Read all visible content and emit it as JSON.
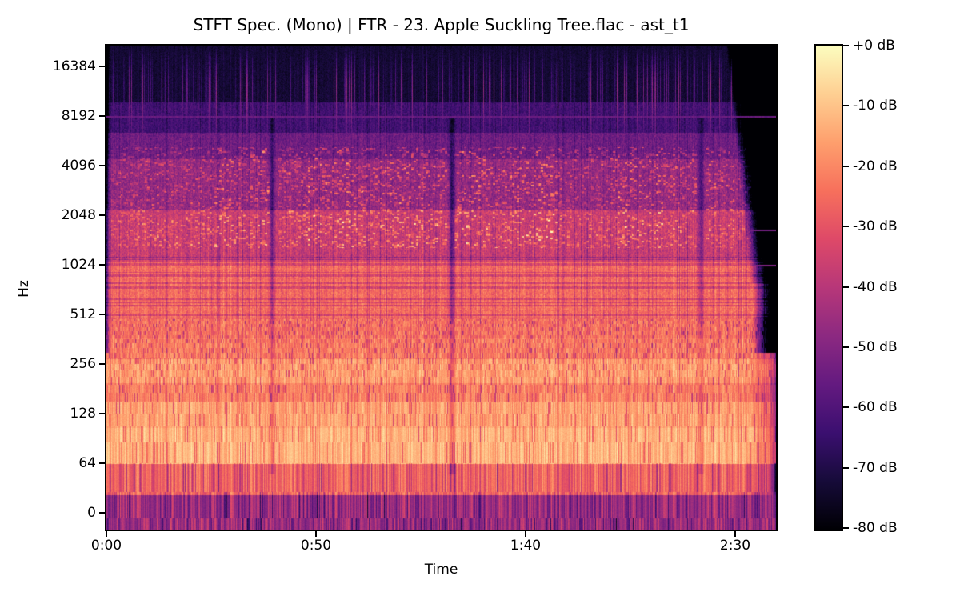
{
  "figure": {
    "background": "#ffffff",
    "text_color": "#000000"
  },
  "chart_data": {
    "type": "heatmap",
    "subtype": "stft-spectrogram",
    "title": "STFT Spec. (Mono) | FTR - 23. Apple Suckling Tree.flac - ast_t1",
    "xlabel": "Time",
    "ylabel": "Hz",
    "x_tick_labels": [
      "0:00",
      "0:50",
      "1:40",
      "2:30"
    ],
    "x_tick_seconds": [
      0,
      50,
      100,
      150
    ],
    "duration_seconds": 160,
    "y_tick_labels": [
      "16384",
      "8192",
      "4096",
      "2048",
      "1024",
      "512",
      "256",
      "128",
      "64",
      "0"
    ],
    "y_scale": "log2",
    "freq_top_hz": 22050,
    "grid": false,
    "colormap": "magma",
    "colormap_stops": [
      "#000004",
      "#160b39",
      "#3b0f70",
      "#641a80",
      "#8c2981",
      "#b73779",
      "#de4968",
      "#f7705c",
      "#fe9f6d",
      "#fecf92",
      "#fcfdbf"
    ],
    "colorbar_tick_labels": [
      "+0 dB",
      "-10 dB",
      "-20 dB",
      "-30 dB",
      "-40 dB",
      "-50 dB",
      "-60 dB",
      "-70 dB",
      "-80 dB"
    ],
    "db_min": -80,
    "db_max": 0,
    "band_profile": [
      {
        "f_lo": 0,
        "f_hi": 41,
        "db": -45,
        "spread": 13,
        "mode": "col"
      },
      {
        "f_lo": 41,
        "f_hi": 64,
        "db": -26,
        "spread": 10,
        "mode": "col"
      },
      {
        "f_lo": 64,
        "f_hi": 105,
        "db": -12,
        "spread": 6,
        "mode": "col"
      },
      {
        "f_lo": 105,
        "f_hi": 152,
        "db": -15,
        "spread": 6,
        "mode": "col"
      },
      {
        "f_lo": 152,
        "f_hi": 196,
        "db": -21,
        "spread": 7,
        "mode": "col"
      },
      {
        "f_lo": 196,
        "f_hi": 275,
        "db": -16,
        "spread": 7,
        "mode": "col"
      },
      {
        "f_lo": 275,
        "f_hi": 370,
        "db": -22,
        "spread": 8,
        "mode": "col"
      },
      {
        "f_lo": 370,
        "f_hi": 480,
        "db": -24,
        "spread": 8,
        "mode": "col"
      },
      {
        "f_lo": 480,
        "f_hi": 1100,
        "db": -27,
        "spread": 6,
        "mode": "pix"
      },
      {
        "f_lo": 1100,
        "f_hi": 2200,
        "db": -37,
        "spread": 7,
        "mode": "pix"
      },
      {
        "f_lo": 2200,
        "f_hi": 4500,
        "db": -47,
        "spread": 7,
        "mode": "pix"
      },
      {
        "f_lo": 4500,
        "f_hi": 6500,
        "db": -54,
        "spread": 6,
        "mode": "pix"
      },
      {
        "f_lo": 6500,
        "f_hi": 10000,
        "db": -63,
        "spread": 5,
        "mode": "pix"
      },
      {
        "f_lo": 10000,
        "f_hi": 22051,
        "db": -74,
        "spread": 3,
        "mode": "pix"
      }
    ],
    "events": {
      "quiet_gaps": [
        {
          "t_s": 39.5,
          "depth_db": 16
        },
        {
          "t_s": 82.5,
          "depth_db": 20
        },
        {
          "t_s": 142.0,
          "depth_db": 14
        }
      ],
      "audio_end_s": 153,
      "pilot_line_hz": 8192,
      "tail_line_hz": [
        1700,
        1024
      ]
    },
    "busy_sections_s": [
      [
        1,
        10,
        0.55
      ],
      [
        10,
        26,
        0.7
      ],
      [
        26,
        39,
        0.85
      ],
      [
        41,
        55,
        0.75
      ],
      [
        55,
        75,
        0.9
      ],
      [
        75,
        82,
        0.7
      ],
      [
        83,
        95,
        0.9
      ],
      [
        95,
        108,
        1.0
      ],
      [
        108,
        120,
        0.8
      ],
      [
        120,
        133,
        0.95
      ],
      [
        133,
        141,
        0.7
      ],
      [
        143,
        150,
        0.8
      ],
      [
        150,
        154,
        0.5
      ]
    ]
  }
}
